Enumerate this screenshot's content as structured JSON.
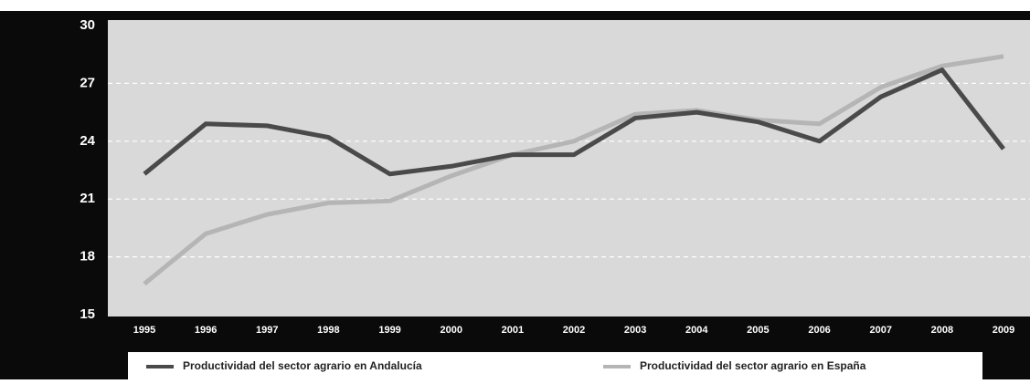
{
  "chart_data": {
    "type": "line",
    "categories": [
      "1995",
      "1996",
      "1997",
      "1998",
      "1999",
      "2000",
      "2001",
      "2002",
      "2003",
      "2004",
      "2005",
      "2006",
      "2007",
      "2008",
      "2009"
    ],
    "series": [
      {
        "name": "Productividad del sector agrario en Andalucía",
        "color": "#4a4a4a",
        "values": [
          22.3,
          24.9,
          24.8,
          24.2,
          22.3,
          22.7,
          23.3,
          23.3,
          25.2,
          25.5,
          25.0,
          24.0,
          26.3,
          27.7,
          23.6
        ]
      },
      {
        "name": "Productividad del sector agrario en España",
        "color": "#b5b5b5",
        "values": [
          16.6,
          19.2,
          20.2,
          20.8,
          20.9,
          22.2,
          23.3,
          24.0,
          25.4,
          25.6,
          25.1,
          24.9,
          26.8,
          27.9,
          28.4
        ]
      }
    ],
    "ylim": [
      15,
      30
    ],
    "yticks": [
      15,
      18,
      21,
      24,
      27,
      30
    ],
    "grid": true
  }
}
